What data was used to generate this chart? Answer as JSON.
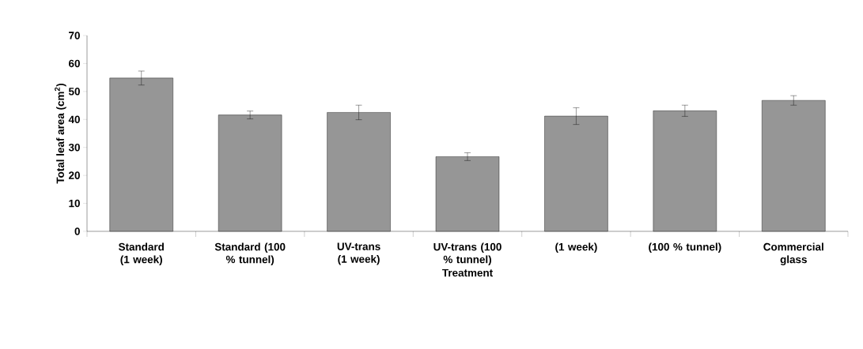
{
  "chart_data": {
    "type": "bar",
    "xlabel": "Treatment",
    "ylabel": "Total leaf area (cm$^{2}$)",
    "categories": [
      "Standard (1 week)",
      "Standard (100 % tunnel)",
      "UV-trans (1 week)",
      "UV-trans (100 % tunnel)",
      "(1 week)",
      "(100 % tunnel)",
      "Commercial glass"
    ],
    "values": [
      54.8,
      41.6,
      42.5,
      26.7,
      41.2,
      43.1,
      46.8
    ],
    "errors": [
      2.5,
      1.4,
      2.6,
      1.4,
      3.0,
      2.0,
      1.7
    ],
    "color": "#969696",
    "ylim": [
      0,
      70
    ],
    "yticks": [
      0,
      10,
      20,
      30,
      40,
      50,
      60,
      70
    ],
    "grid": false
  }
}
